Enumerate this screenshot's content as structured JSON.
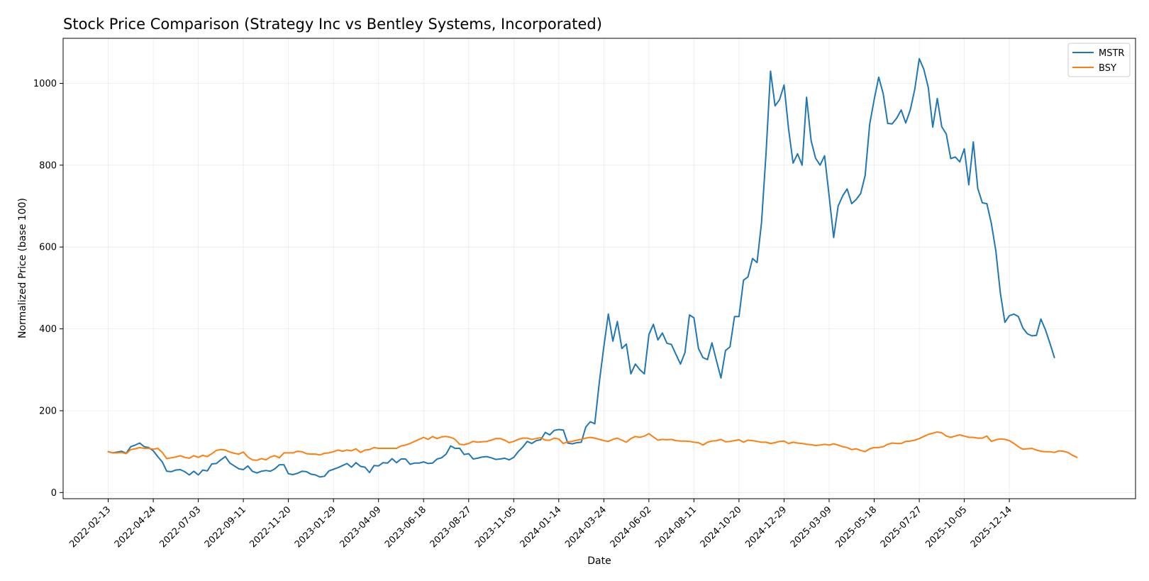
{
  "chart_data": {
    "type": "line",
    "title": "Stock Price Comparison (Strategy Inc vs Bentley Systems, Incorporated)",
    "xlabel": "Date",
    "ylabel": "Normalized Price (base 100)",
    "x_ticks": [
      "2022-02-13",
      "2022-04-24",
      "2022-07-03",
      "2022-09-11",
      "2022-11-20",
      "2023-01-29",
      "2023-04-09",
      "2023-06-18",
      "2023-08-27",
      "2023-11-05",
      "2024-01-14",
      "2024-03-24",
      "2024-06-02",
      "2024-08-11",
      "2024-10-20",
      "2024-12-29",
      "2025-03-09",
      "2025-05-18",
      "2025-07-27",
      "2025-10-05",
      "2025-12-14"
    ],
    "y_ticks": [
      0,
      200,
      400,
      600,
      800,
      1000
    ],
    "xlim": [
      -10,
      228
    ],
    "ylim": [
      -15,
      1110
    ],
    "grid": true,
    "legend_position": "top-right",
    "series": [
      {
        "name": "MSTR",
        "color": "#1f77b4",
        "values": [
          100,
          97,
          99,
          101,
          96,
          112,
          116,
          121,
          112,
          110,
          102,
          88,
          75,
          52,
          51,
          55,
          56,
          51,
          43,
          52,
          43,
          55,
          53,
          70,
          71,
          80,
          88,
          72,
          65,
          58,
          56,
          65,
          52,
          48,
          52,
          54,
          52,
          58,
          68,
          68,
          46,
          44,
          47,
          52,
          51,
          45,
          43,
          38,
          40,
          53,
          57,
          61,
          66,
          71,
          62,
          73,
          64,
          62,
          49,
          66,
          65,
          73,
          72,
          83,
          73,
          82,
          82,
          69,
          72,
          72,
          75,
          71,
          72,
          82,
          85,
          94,
          114,
          108,
          108,
          93,
          95,
          82,
          84,
          87,
          88,
          85,
          81,
          82,
          84,
          80,
          86,
          100,
          111,
          125,
          120,
          127,
          129,
          147,
          141,
          152,
          154,
          153,
          121,
          119,
          122,
          123,
          160,
          173,
          168,
          270,
          357,
          436,
          370,
          418,
          352,
          363,
          290,
          314,
          300,
          290,
          386,
          411,
          373,
          390,
          365,
          362,
          338,
          314,
          342,
          434,
          427,
          352,
          330,
          325,
          366,
          322,
          280,
          347,
          356,
          430,
          430,
          519,
          527,
          572,
          562,
          660,
          830,
          1030,
          945,
          960,
          996,
          889,
          805,
          828,
          800,
          966,
          860,
          817,
          800,
          823,
          725,
          623,
          700,
          725,
          742,
          706,
          716,
          731,
          775,
          900,
          960,
          1015,
          975,
          902,
          901,
          915,
          935,
          903,
          935,
          985,
          1060,
          1035,
          990,
          893,
          963,
          894,
          876,
          816,
          820,
          808,
          840,
          752,
          857,
          743,
          708,
          706,
          658,
          590,
          488,
          416,
          432,
          436,
          430,
          402,
          388,
          383,
          384,
          424,
          398,
          365,
          330
        ]
      },
      {
        "name": "BSY",
        "color": "#ff7f0e",
        "values": [
          100,
          97,
          97,
          98,
          95,
          105,
          107,
          110,
          108,
          108,
          106,
          108,
          98,
          83,
          85,
          87,
          90,
          86,
          84,
          90,
          86,
          91,
          88,
          95,
          103,
          105,
          104,
          99,
          96,
          94,
          99,
          87,
          80,
          79,
          83,
          80,
          87,
          90,
          85,
          97,
          97,
          97,
          101,
          100,
          95,
          94,
          94,
          92,
          96,
          97,
          100,
          104,
          101,
          104,
          102,
          107,
          98,
          104,
          105,
          110,
          108,
          108,
          108,
          108,
          108,
          114,
          116,
          120,
          125,
          130,
          135,
          130,
          137,
          132,
          136,
          137,
          135,
          130,
          118,
          117,
          120,
          125,
          123,
          124,
          125,
          128,
          132,
          132,
          128,
          122,
          125,
          130,
          133,
          133,
          130,
          132,
          134,
          128,
          128,
          133,
          131,
          120,
          124,
          125,
          128,
          130,
          133,
          135,
          133,
          130,
          127,
          125,
          130,
          133,
          128,
          123,
          132,
          137,
          135,
          138,
          144,
          136,
          128,
          130,
          129,
          130,
          127,
          126,
          126,
          125,
          123,
          122,
          116,
          123,
          126,
          127,
          130,
          124,
          125,
          127,
          129,
          123,
          128,
          127,
          125,
          123,
          123,
          120,
          122,
          125,
          126,
          120,
          123,
          121,
          120,
          118,
          117,
          115,
          116,
          118,
          116,
          119,
          116,
          112,
          110,
          105,
          107,
          103,
          100,
          107,
          110,
          110,
          112,
          118,
          121,
          120,
          120,
          125,
          126,
          128,
          132,
          137,
          142,
          145,
          148,
          146,
          138,
          135,
          138,
          141,
          138,
          135,
          135,
          133,
          133,
          138,
          125,
          129,
          131,
          130,
          127,
          120,
          112,
          106,
          107,
          108,
          104,
          101,
          100,
          100,
          98,
          102,
          101,
          98,
          91,
          86
        ]
      }
    ]
  }
}
